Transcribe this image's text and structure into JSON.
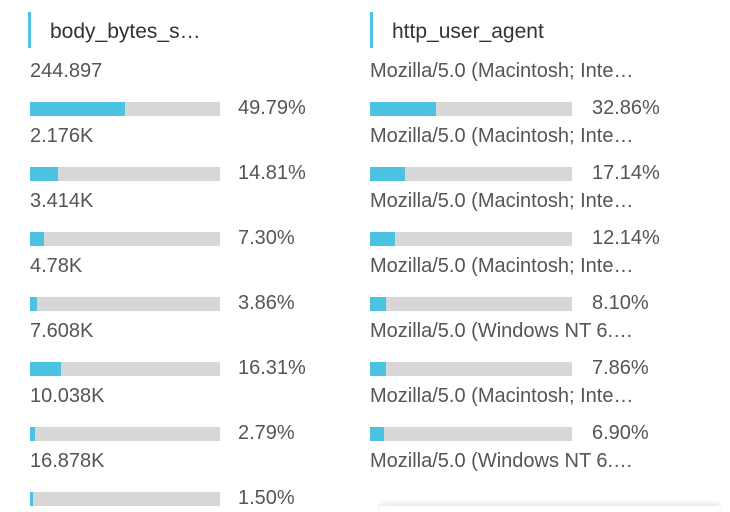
{
  "accent_color": "#4cc3e0",
  "track_color": "#d7d7d7",
  "left": {
    "title": "body_bytes_s…",
    "rows": [
      {
        "label": "244.897",
        "pct": "49.79%",
        "fraction": 0.4979
      },
      {
        "label": "2.176K",
        "pct": "14.81%",
        "fraction": 0.1481
      },
      {
        "label": "3.414K",
        "pct": "7.30%",
        "fraction": 0.073
      },
      {
        "label": "4.78K",
        "pct": "3.86%",
        "fraction": 0.0386
      },
      {
        "label": "7.608K",
        "pct": "16.31%",
        "fraction": 0.1631
      },
      {
        "label": "10.038K",
        "pct": "2.79%",
        "fraction": 0.0279
      },
      {
        "label": "16.878K",
        "pct": "1.50%",
        "fraction": 0.015
      }
    ]
  },
  "right": {
    "title": "http_user_agent",
    "rows": [
      {
        "label": "Mozilla/5.0 (Macintosh; Inte…",
        "pct": "32.86%",
        "fraction": 0.3286
      },
      {
        "label": "Mozilla/5.0 (Macintosh; Inte…",
        "pct": "17.14%",
        "fraction": 0.1714
      },
      {
        "label": "Mozilla/5.0 (Macintosh; Inte…",
        "pct": "12.14%",
        "fraction": 0.1214
      },
      {
        "label": "Mozilla/5.0 (Macintosh; Inte…",
        "pct": "8.10%",
        "fraction": 0.081
      },
      {
        "label": "Mozilla/5.0 (Windows NT 6.…",
        "pct": "7.86%",
        "fraction": 0.0786
      },
      {
        "label": "Mozilla/5.0 (Macintosh; Inte…",
        "pct": "6.90%",
        "fraction": 0.069
      },
      {
        "label": "Mozilla/5.0 (Windows NT 6.…",
        "pct": "",
        "fraction": null
      }
    ]
  }
}
